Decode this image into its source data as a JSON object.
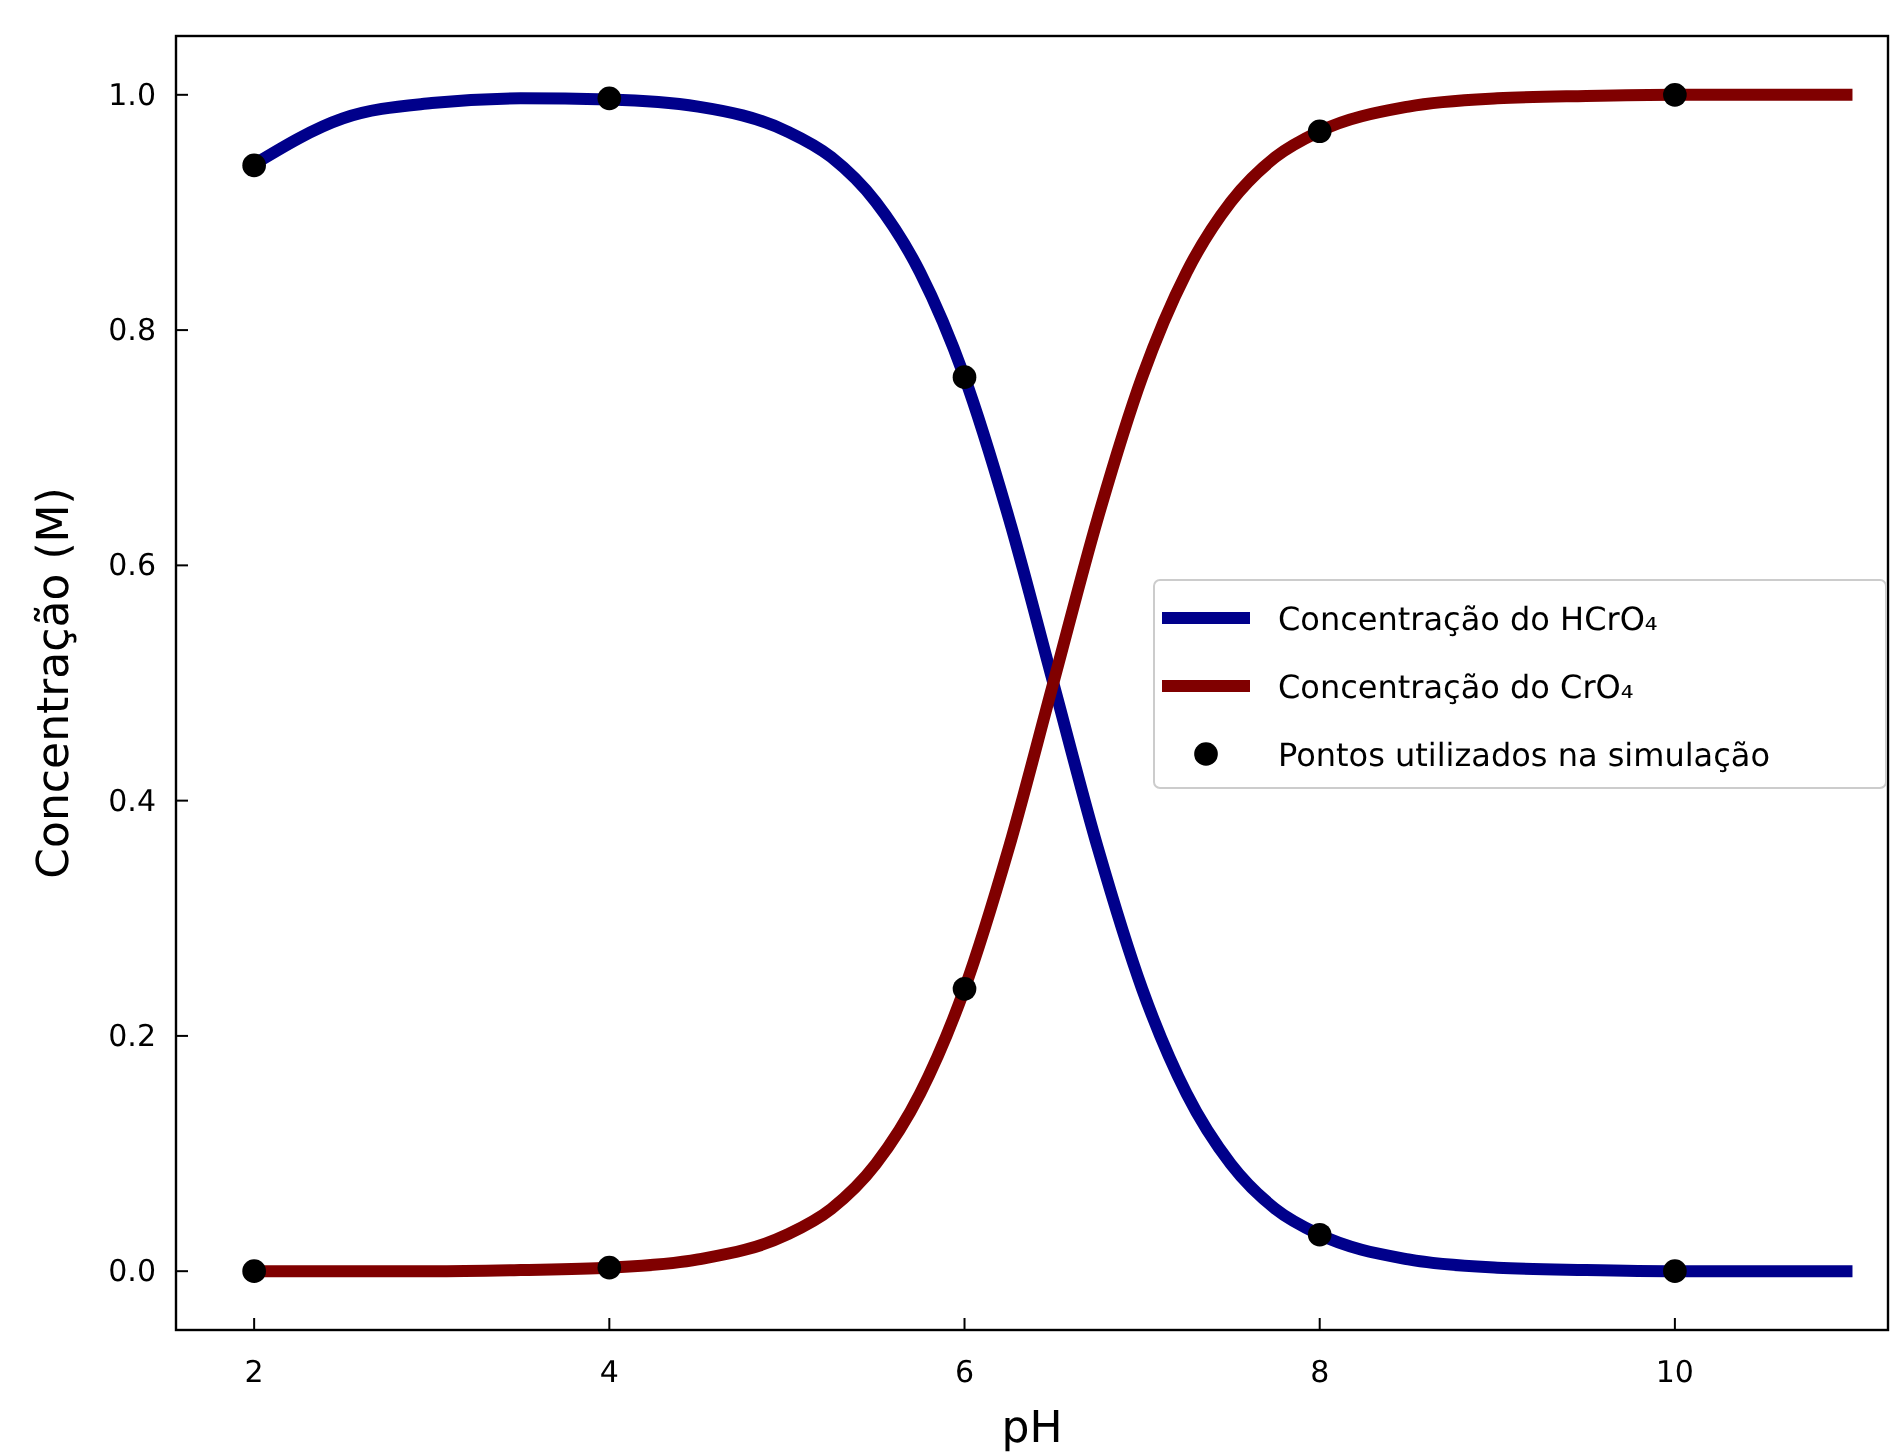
{
  "chart_data": {
    "type": "line",
    "xlabel": "pH",
    "ylabel": "Concentração (M)",
    "xlim": [
      1.56,
      11.2
    ],
    "ylim": [
      -0.05,
      1.05
    ],
    "xticks": [
      {
        "value": 2,
        "label": "2"
      },
      {
        "value": 4,
        "label": "4"
      },
      {
        "value": 6,
        "label": "6"
      },
      {
        "value": 8,
        "label": "8"
      },
      {
        "value": 10,
        "label": "10"
      }
    ],
    "yticks": [
      {
        "value": 0,
        "label": "0.0"
      },
      {
        "value": 0.2,
        "label": "0.2"
      },
      {
        "value": 0.4,
        "label": "0.4"
      },
      {
        "value": 0.6,
        "label": "0.6"
      },
      {
        "value": 0.8,
        "label": "0.8"
      },
      {
        "value": 1.0,
        "label": "1.0"
      }
    ],
    "grid": false,
    "legend": "right",
    "marker": "none",
    "line_style": "solid",
    "series": [
      {
        "name": "Concentração do HCrO₄",
        "color": "#00008b",
        "x": [
          2,
          2.5,
          3,
          3.5,
          4,
          4.5,
          5,
          5.25,
          5.5,
          5.75,
          6,
          6.25,
          6.5,
          6.75,
          7,
          7.25,
          7.5,
          7.75,
          8,
          8.5,
          9,
          9.5,
          10,
          11
        ],
        "values": [
          0.941,
          0.98,
          0.993,
          0.997,
          0.996,
          0.99,
          0.969,
          0.947,
          0.909,
          0.849,
          0.76,
          0.64,
          0.5,
          0.36,
          0.24,
          0.151,
          0.091,
          0.053,
          0.031,
          0.01,
          0.003,
          0.001,
          0.0,
          0.0
        ]
      },
      {
        "name": "Concentração do CrO₄",
        "color": "#800000",
        "x": [
          2,
          2.5,
          3,
          3.5,
          4,
          4.5,
          5,
          5.25,
          5.5,
          5.75,
          6,
          6.25,
          6.5,
          6.75,
          7,
          7.25,
          7.5,
          7.75,
          8,
          8.5,
          9,
          9.5,
          10,
          11
        ],
        "values": [
          0.0,
          0.0,
          0.0,
          0.001,
          0.003,
          0.01,
          0.031,
          0.053,
          0.091,
          0.151,
          0.24,
          0.36,
          0.5,
          0.64,
          0.76,
          0.849,
          0.909,
          0.947,
          0.969,
          0.99,
          0.997,
          0.999,
          1.0,
          1.0
        ]
      },
      {
        "name": "Pontos utilizados na simulação",
        "color": "#000000",
        "type": "scatter",
        "marker": "circle",
        "x": [
          2,
          4,
          6,
          8,
          10,
          2,
          4,
          6,
          8,
          10
        ],
        "values": [
          0.94,
          0.997,
          0.76,
          0.031,
          0.0,
          0.0,
          0.003,
          0.24,
          0.969,
          1.0
        ]
      }
    ]
  }
}
